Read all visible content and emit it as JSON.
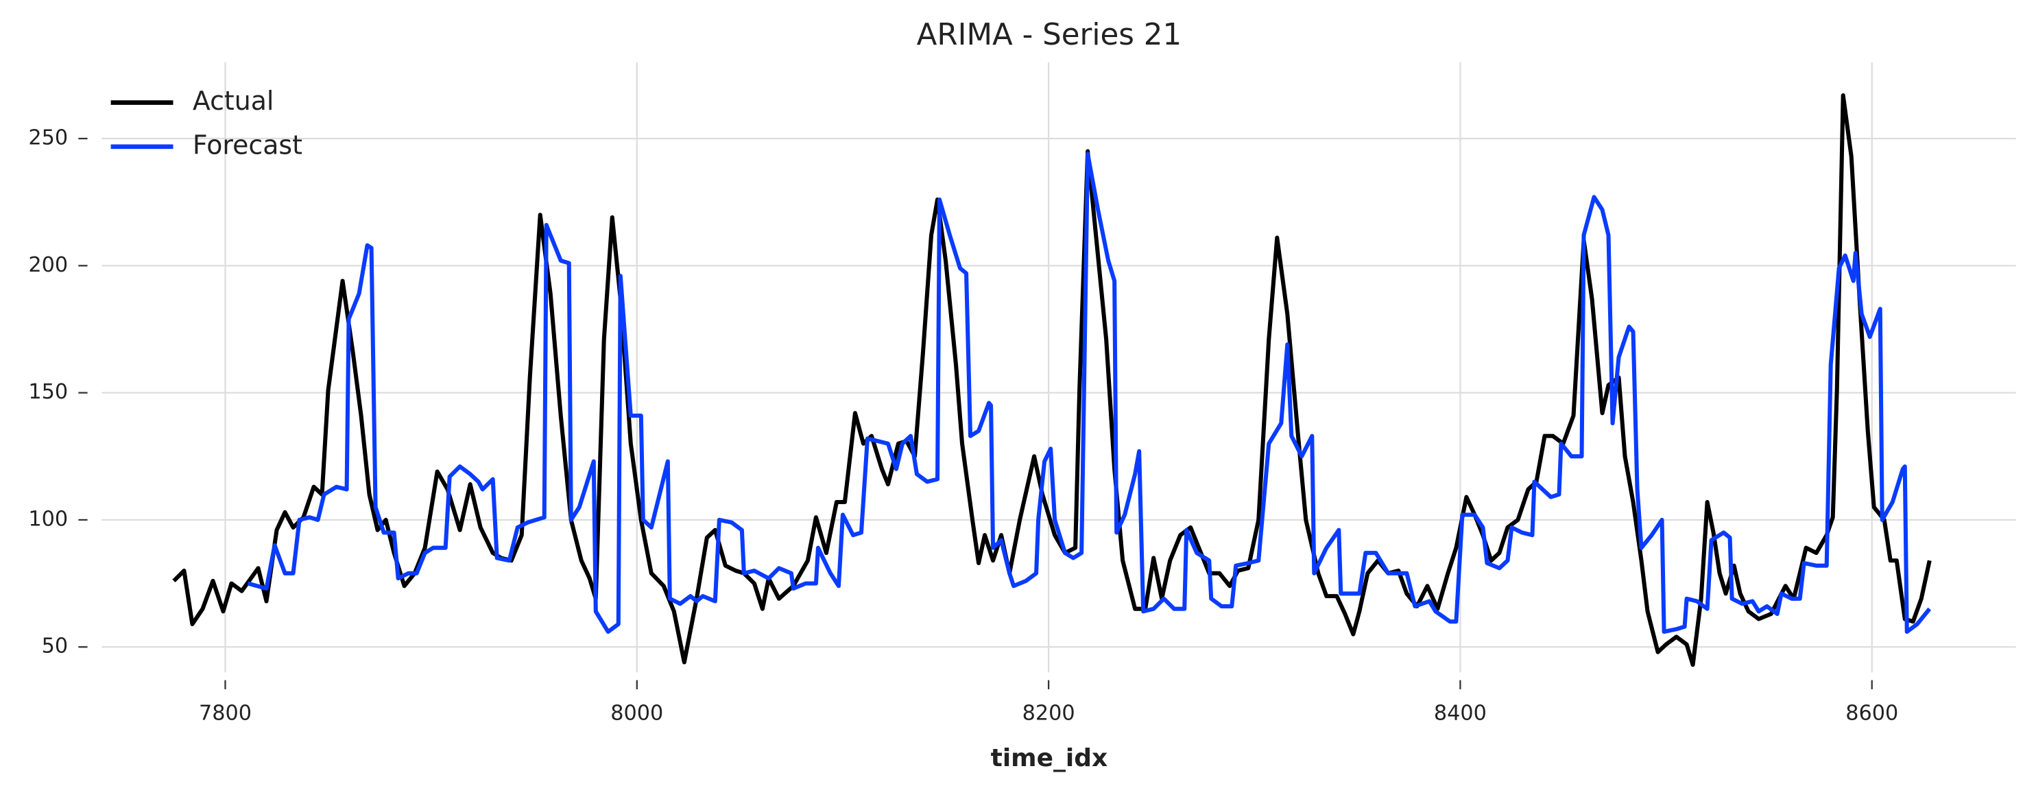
{
  "chart_data": {
    "type": "line",
    "title": "ARIMA - Series 21",
    "xlabel": "time_idx",
    "xlim": [
      7740,
      8670
    ],
    "ylim": [
      40,
      280
    ],
    "xticks": [
      7800,
      8000,
      8200,
      8400,
      8600
    ],
    "yticks": [
      50,
      100,
      150,
      200,
      250
    ],
    "grid": true,
    "legend": "upper left",
    "series": [
      {
        "name": "Actual",
        "color": "#000000",
        "x": [
          7775,
          7780,
          7784,
          7789,
          7794,
          7799,
          7803,
          7808,
          7816,
          7820,
          7825,
          7829,
          7833,
          7838,
          7843,
          7847,
          7850,
          7857,
          7862,
          7866,
          7870,
          7874,
          7878,
          7882,
          7887,
          7892,
          7897,
          7903,
          7908,
          7914,
          7919,
          7924,
          7930,
          7934,
          7939,
          7944,
          7948,
          7953,
          7958,
          7963,
          7968,
          7973,
          7977,
          7980,
          7984,
          7988,
          7992,
          7997,
          8002,
          8007,
          8013,
          8018,
          8023,
          8029,
          8034,
          8038,
          8043,
          8048,
          8052,
          8057,
          8061,
          8064,
          8069,
          8076,
          8083,
          8087,
          8092,
          8097,
          8101,
          8106,
          8110,
          8114,
          8119,
          8122,
          8127,
          8131,
          8135,
          8139,
          8143,
          8146,
          8150,
          8155,
          8158,
          8163,
          8166,
          8169,
          8173,
          8177,
          8181,
          8186,
          8193,
          8197,
          8203,
          8208,
          8213,
          8215,
          8219,
          8223,
          8228,
          8232,
          8236,
          8242,
          8247,
          8251,
          8255,
          8259,
          8264,
          8269,
          8274,
          8278,
          8283,
          8288,
          8292,
          8297,
          8302,
          8307,
          8311,
          8316,
          8321,
          8325,
          8331,
          8335,
          8340,
          8344,
          8348,
          8351,
          8355,
          8360,
          8365,
          8370,
          8374,
          8379,
          8384,
          8389,
          8394,
          8398,
          8403,
          8407,
          8411,
          8415,
          8419,
          8423,
          8428,
          8433,
          8437,
          8441,
          8445,
          8450,
          8455,
          8460,
          8464,
          8469,
          8472,
          8477,
          8480,
          8484,
          8488,
          8491,
          8496,
          8500,
          8505,
          8510,
          8513,
          8517,
          8520,
          8523,
          8526,
          8529,
          8533,
          8536,
          8540,
          8545,
          8551,
          8558,
          8562,
          8568,
          8573,
          8578,
          8581,
          8583,
          8586,
          8590,
          8594,
          8598,
          8601,
          8606,
          8609,
          8612,
          8616,
          8620,
          8624,
          8628
        ],
        "values": [
          76,
          80,
          59,
          65,
          76,
          64,
          75,
          72,
          81,
          68,
          96,
          103,
          97,
          101,
          113,
          110,
          151,
          194,
          166,
          141,
          110,
          96,
          100,
          87,
          74,
          79,
          89,
          119,
          112,
          96,
          114,
          97,
          87,
          85,
          84,
          94,
          156,
          220,
          189,
          141,
          100,
          84,
          77,
          69,
          171,
          219,
          187,
          130,
          100,
          79,
          74,
          64,
          44,
          69,
          93,
          96,
          82,
          80,
          79,
          75,
          65,
          77,
          69,
          74,
          84,
          101,
          87,
          107,
          107,
          142,
          130,
          133,
          120,
          114,
          130,
          131,
          125,
          166,
          212,
          226,
          202,
          161,
          130,
          100,
          83,
          94,
          84,
          94,
          79,
          100,
          125,
          110,
          94,
          87,
          89,
          151,
          245,
          212,
          171,
          120,
          84,
          65,
          65,
          85,
          69,
          84,
          94,
          97,
          87,
          79,
          79,
          74,
          80,
          81,
          100,
          171,
          211,
          181,
          135,
          100,
          79,
          70,
          70,
          63,
          55,
          64,
          79,
          84,
          79,
          80,
          71,
          66,
          74,
          65,
          79,
          89,
          109,
          102,
          94,
          84,
          87,
          97,
          100,
          112,
          115,
          133,
          133,
          130,
          141,
          210,
          187,
          142,
          153,
          156,
          125,
          107,
          84,
          64,
          48,
          51,
          54,
          51,
          43,
          69,
          107,
          95,
          79,
          71,
          82,
          71,
          64,
          61,
          63,
          74,
          69,
          89,
          87,
          94,
          101,
          151,
          267,
          243,
          187,
          135,
          105,
          100,
          84,
          84,
          61,
          60,
          69,
          84
        ]
      },
      {
        "name": "Forecast",
        "color": "#0a3cff",
        "x": [
          7811,
          7820,
          7824,
          7829,
          7833,
          7836,
          7841,
          7845,
          7848,
          7854,
          7859,
          7860,
          7865,
          7869,
          7871,
          7873,
          7877,
          7882,
          7884,
          7889,
          7893,
          7897,
          7901,
          7907,
          7909,
          7914,
          7919,
          7923,
          7925,
          7930,
          7932,
          7938,
          7942,
          7947,
          7955,
          7956,
          7963,
          7967,
          7968,
          7972,
          7979,
          7980,
          7986,
          7991,
          7992,
          7997,
          8002,
          8003,
          8007,
          8011,
          8015,
          8016,
          8021,
          8026,
          8029,
          8032,
          8038,
          8040,
          8046,
          8051,
          8052,
          8057,
          8064,
          8069,
          8075,
          8076,
          8082,
          8087,
          8088,
          8094,
          8098,
          8100,
          8105,
          8109,
          8112,
          8117,
          8122,
          8126,
          8129,
          8133,
          8136,
          8141,
          8146,
          8147,
          8152,
          8157,
          8160,
          8162,
          8166,
          8171,
          8172,
          8173,
          8177,
          8181,
          8183,
          8189,
          8194,
          8195,
          8198,
          8201,
          8203,
          8208,
          8212,
          8216,
          8219,
          8224,
          8229,
          8232,
          8233,
          8237,
          8242,
          8244,
          8246,
          8251,
          8256,
          8261,
          8266,
          8267,
          8272,
          8278,
          8279,
          8284,
          8289,
          8291,
          8297,
          8302,
          8307,
          8313,
          8316,
          8318,
          8323,
          8328,
          8329,
          8335,
          8341,
          8342,
          8351,
          8354,
          8359,
          8365,
          8370,
          8374,
          8378,
          8385,
          8388,
          8395,
          8398,
          8401,
          8407,
          8411,
          8413,
          8419,
          8423,
          8425,
          8430,
          8435,
          8436,
          8444,
          8448,
          8449,
          8454,
          8459,
          8460,
          8465,
          8469,
          8472,
          8474,
          8477,
          8482,
          8484,
          8486,
          8488,
          8493,
          8498,
          8499,
          8505,
          8509,
          8510,
          8515,
          8520,
          8522,
          8528,
          8531,
          8532,
          8537,
          8542,
          8545,
          8549,
          8554,
          8556,
          8561,
          8565,
          8567,
          8573,
          8578,
          8580,
          8584,
          8587,
          8591,
          8592,
          8595,
          8599,
          8604,
          8605,
          8610,
          8615,
          8616,
          8617,
          8622,
          8628
        ],
        "values": [
          75,
          73,
          90,
          79,
          79,
          100,
          101,
          100,
          110,
          113,
          112,
          179,
          189,
          208,
          207,
          105,
          95,
          95,
          77,
          79,
          79,
          87,
          89,
          89,
          117,
          121,
          118,
          115,
          112,
          116,
          85,
          84,
          97,
          99,
          101,
          216,
          202,
          201,
          100,
          105,
          123,
          64,
          56,
          59,
          196,
          141,
          141,
          100,
          97,
          110,
          123,
          69,
          67,
          70,
          68,
          70,
          68,
          100,
          99,
          96,
          79,
          80,
          77,
          81,
          79,
          73,
          75,
          75,
          89,
          79,
          74,
          102,
          94,
          95,
          132,
          131,
          130,
          120,
          130,
          133,
          118,
          115,
          116,
          226,
          212,
          199,
          197,
          133,
          135,
          146,
          145,
          89,
          92,
          79,
          74,
          76,
          79,
          100,
          123,
          128,
          100,
          87,
          85,
          87,
          244,
          222,
          202,
          194,
          95,
          102,
          118,
          127,
          64,
          65,
          69,
          65,
          65,
          96,
          87,
          84,
          69,
          66,
          66,
          82,
          83,
          84,
          130,
          138,
          169,
          133,
          125,
          133,
          79,
          89,
          96,
          71,
          71,
          87,
          87,
          79,
          79,
          79,
          66,
          68,
          64,
          60,
          60,
          102,
          102,
          97,
          83,
          81,
          84,
          97,
          95,
          94,
          115,
          109,
          110,
          130,
          125,
          125,
          212,
          227,
          222,
          212,
          138,
          164,
          176,
          174,
          112,
          89,
          94,
          100,
          56,
          57,
          58,
          69,
          68,
          65,
          92,
          95,
          93,
          69,
          67,
          68,
          64,
          66,
          63,
          71,
          69,
          69,
          83,
          82,
          82,
          161,
          199,
          204,
          194,
          205,
          181,
          172,
          183,
          100,
          107,
          120,
          121,
          56,
          59,
          65
        ]
      }
    ]
  }
}
